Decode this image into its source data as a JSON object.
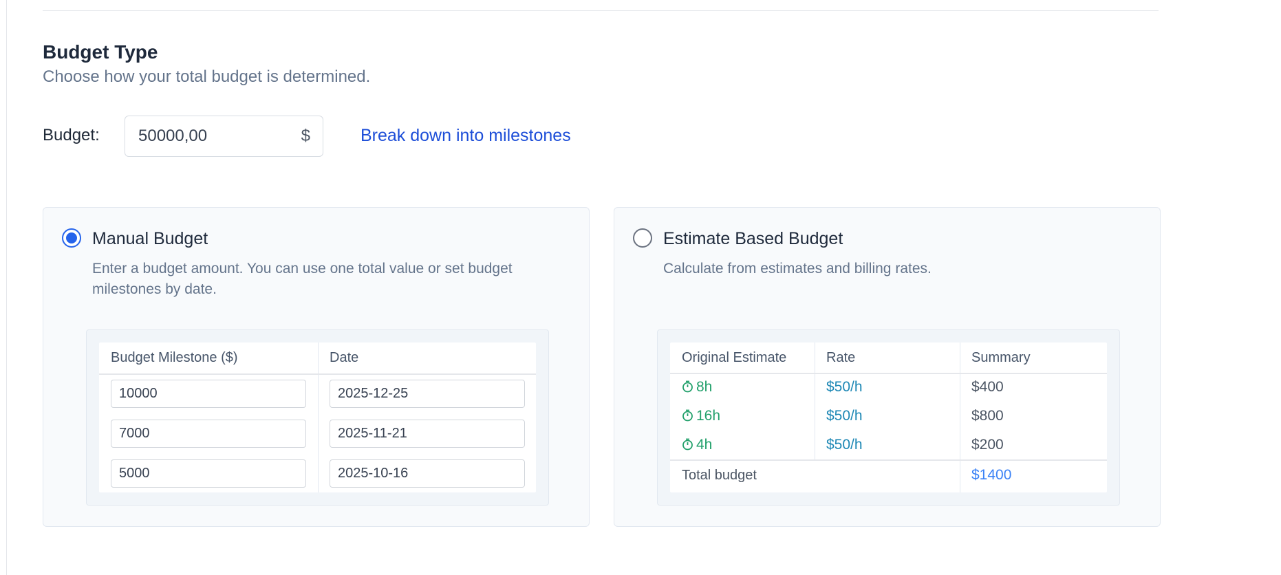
{
  "section": {
    "title": "Budget Type",
    "subtitle": "Choose how your total budget is determined."
  },
  "budget": {
    "label": "Budget:",
    "value": "50000,00",
    "currency": "$",
    "milestone_link": "Break down into milestones"
  },
  "manual_option": {
    "title": "Manual Budget",
    "description": "Enter a budget amount. You can use one total value or set budget milestones by date.",
    "selected": true,
    "table": {
      "headers": [
        "Budget Milestone ($)",
        "Date"
      ],
      "rows": [
        {
          "amount": "10000",
          "date": "2025-12-25"
        },
        {
          "amount": "7000",
          "date": "2025-11-21"
        },
        {
          "amount": "5000",
          "date": "2025-10-16"
        }
      ]
    }
  },
  "estimate_option": {
    "title": "Estimate Based Budget",
    "description": "Calculate from estimates and billing rates.",
    "selected": false,
    "table": {
      "headers": [
        "Original Estimate",
        "Rate",
        "Summary"
      ],
      "rows": [
        {
          "estimate": "8h",
          "rate": "$50/h",
          "summary": "$400"
        },
        {
          "estimate": "16h",
          "rate": "$50/h",
          "summary": "$800"
        },
        {
          "estimate": "4h",
          "rate": "$50/h",
          "summary": "$200"
        }
      ],
      "total_label": "Total budget",
      "total_value": "$1400"
    }
  },
  "colors": {
    "accent": "#2563eb",
    "link": "#1d4ed8",
    "estimate_green": "#22a06b",
    "rate_teal": "#1e88b5",
    "total_blue": "#3b82f6"
  },
  "icons": {
    "timer": "stopwatch-icon"
  }
}
